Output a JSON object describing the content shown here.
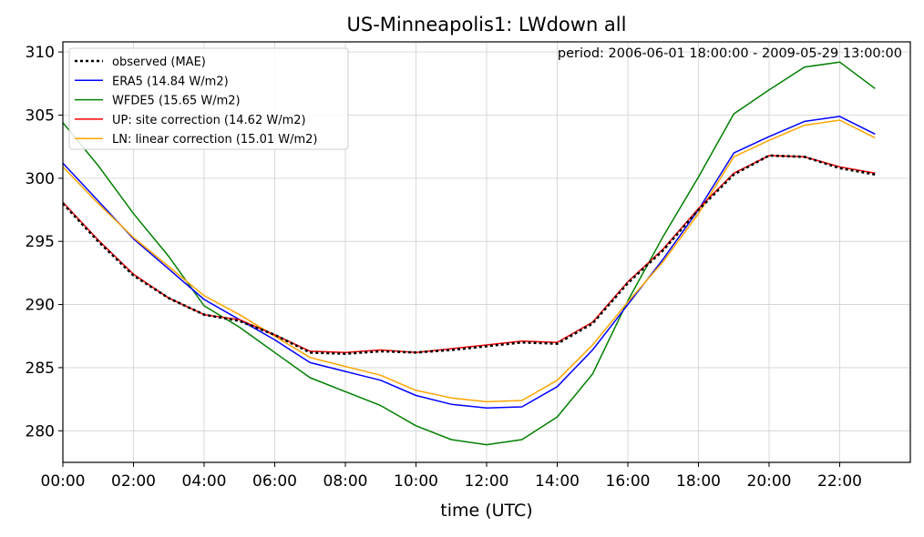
{
  "chart_data": {
    "type": "line",
    "title": "US-Minneapolis1: LWdown all",
    "annotation": "period: 2006-06-01 18:00:00 - 2009-05-29 13:00:00",
    "xlabel": "time (UTC)",
    "ylabel": "",
    "x_hours": [
      0,
      1,
      2,
      3,
      4,
      5,
      6,
      7,
      8,
      9,
      10,
      11,
      12,
      13,
      14,
      15,
      16,
      17,
      18,
      19,
      20,
      21,
      22,
      23
    ],
    "xlim": [
      0,
      24
    ],
    "ylim": [
      277.5,
      310.8
    ],
    "x_ticks": [
      0,
      2,
      4,
      6,
      8,
      10,
      12,
      14,
      16,
      18,
      20,
      22
    ],
    "x_tick_labels": [
      "00:00",
      "02:00",
      "04:00",
      "06:00",
      "08:00",
      "10:00",
      "12:00",
      "14:00",
      "16:00",
      "18:00",
      "20:00",
      "22:00"
    ],
    "y_ticks": [
      280,
      285,
      290,
      295,
      300,
      305,
      310
    ],
    "y_tick_labels": [
      "280",
      "285",
      "290",
      "295",
      "300",
      "305",
      "310"
    ],
    "grid": true,
    "legend_position": "top-left",
    "series": [
      {
        "name": "observed (MAE)",
        "color": "#000000",
        "style": "dotted",
        "values": [
          298.0,
          295.0,
          292.3,
          290.5,
          289.2,
          288.7,
          287.6,
          286.2,
          286.1,
          286.3,
          286.2,
          286.4,
          286.7,
          287.0,
          286.9,
          288.5,
          291.7,
          294.3,
          297.5,
          300.3,
          301.8,
          301.7,
          300.8,
          300.3
        ]
      },
      {
        "name": "ERA5 (14.84 W/m2)",
        "color": "#0000ff",
        "style": "solid",
        "values": [
          301.2,
          298.2,
          295.2,
          292.8,
          290.4,
          288.8,
          287.2,
          285.4,
          284.7,
          284.0,
          282.8,
          282.1,
          281.8,
          281.9,
          283.5,
          286.4,
          290.0,
          293.6,
          297.5,
          302.0,
          303.3,
          304.5,
          304.9,
          303.5
        ]
      },
      {
        "name": "WFDE5 (15.65 W/m2)",
        "color": "#008000",
        "style": "solid",
        "values": [
          304.4,
          301.0,
          297.2,
          293.8,
          289.9,
          288.2,
          286.2,
          284.2,
          283.1,
          282.0,
          280.4,
          279.3,
          278.9,
          279.3,
          281.1,
          284.5,
          290.3,
          295.4,
          300.1,
          305.1,
          307.0,
          308.8,
          309.2,
          307.1
        ]
      },
      {
        "name": "UP: site correction (14.62 W/m2)",
        "color": "#ff0000",
        "style": "solid",
        "values": [
          298.1,
          295.1,
          292.4,
          290.5,
          289.2,
          288.8,
          287.6,
          286.3,
          286.2,
          286.4,
          286.2,
          286.5,
          286.8,
          287.1,
          287.0,
          288.6,
          291.8,
          294.4,
          297.6,
          300.4,
          301.8,
          301.7,
          300.9,
          300.4
        ]
      },
      {
        "name": "LN: linear correction (15.01 W/m2)",
        "color": "#ffa500",
        "style": "solid",
        "values": [
          300.9,
          298.0,
          295.3,
          293.0,
          290.7,
          289.2,
          287.5,
          285.8,
          285.1,
          284.4,
          283.2,
          282.6,
          282.3,
          282.4,
          284.0,
          286.8,
          290.2,
          293.4,
          297.2,
          301.7,
          303.0,
          304.2,
          304.6,
          303.2
        ]
      }
    ]
  }
}
